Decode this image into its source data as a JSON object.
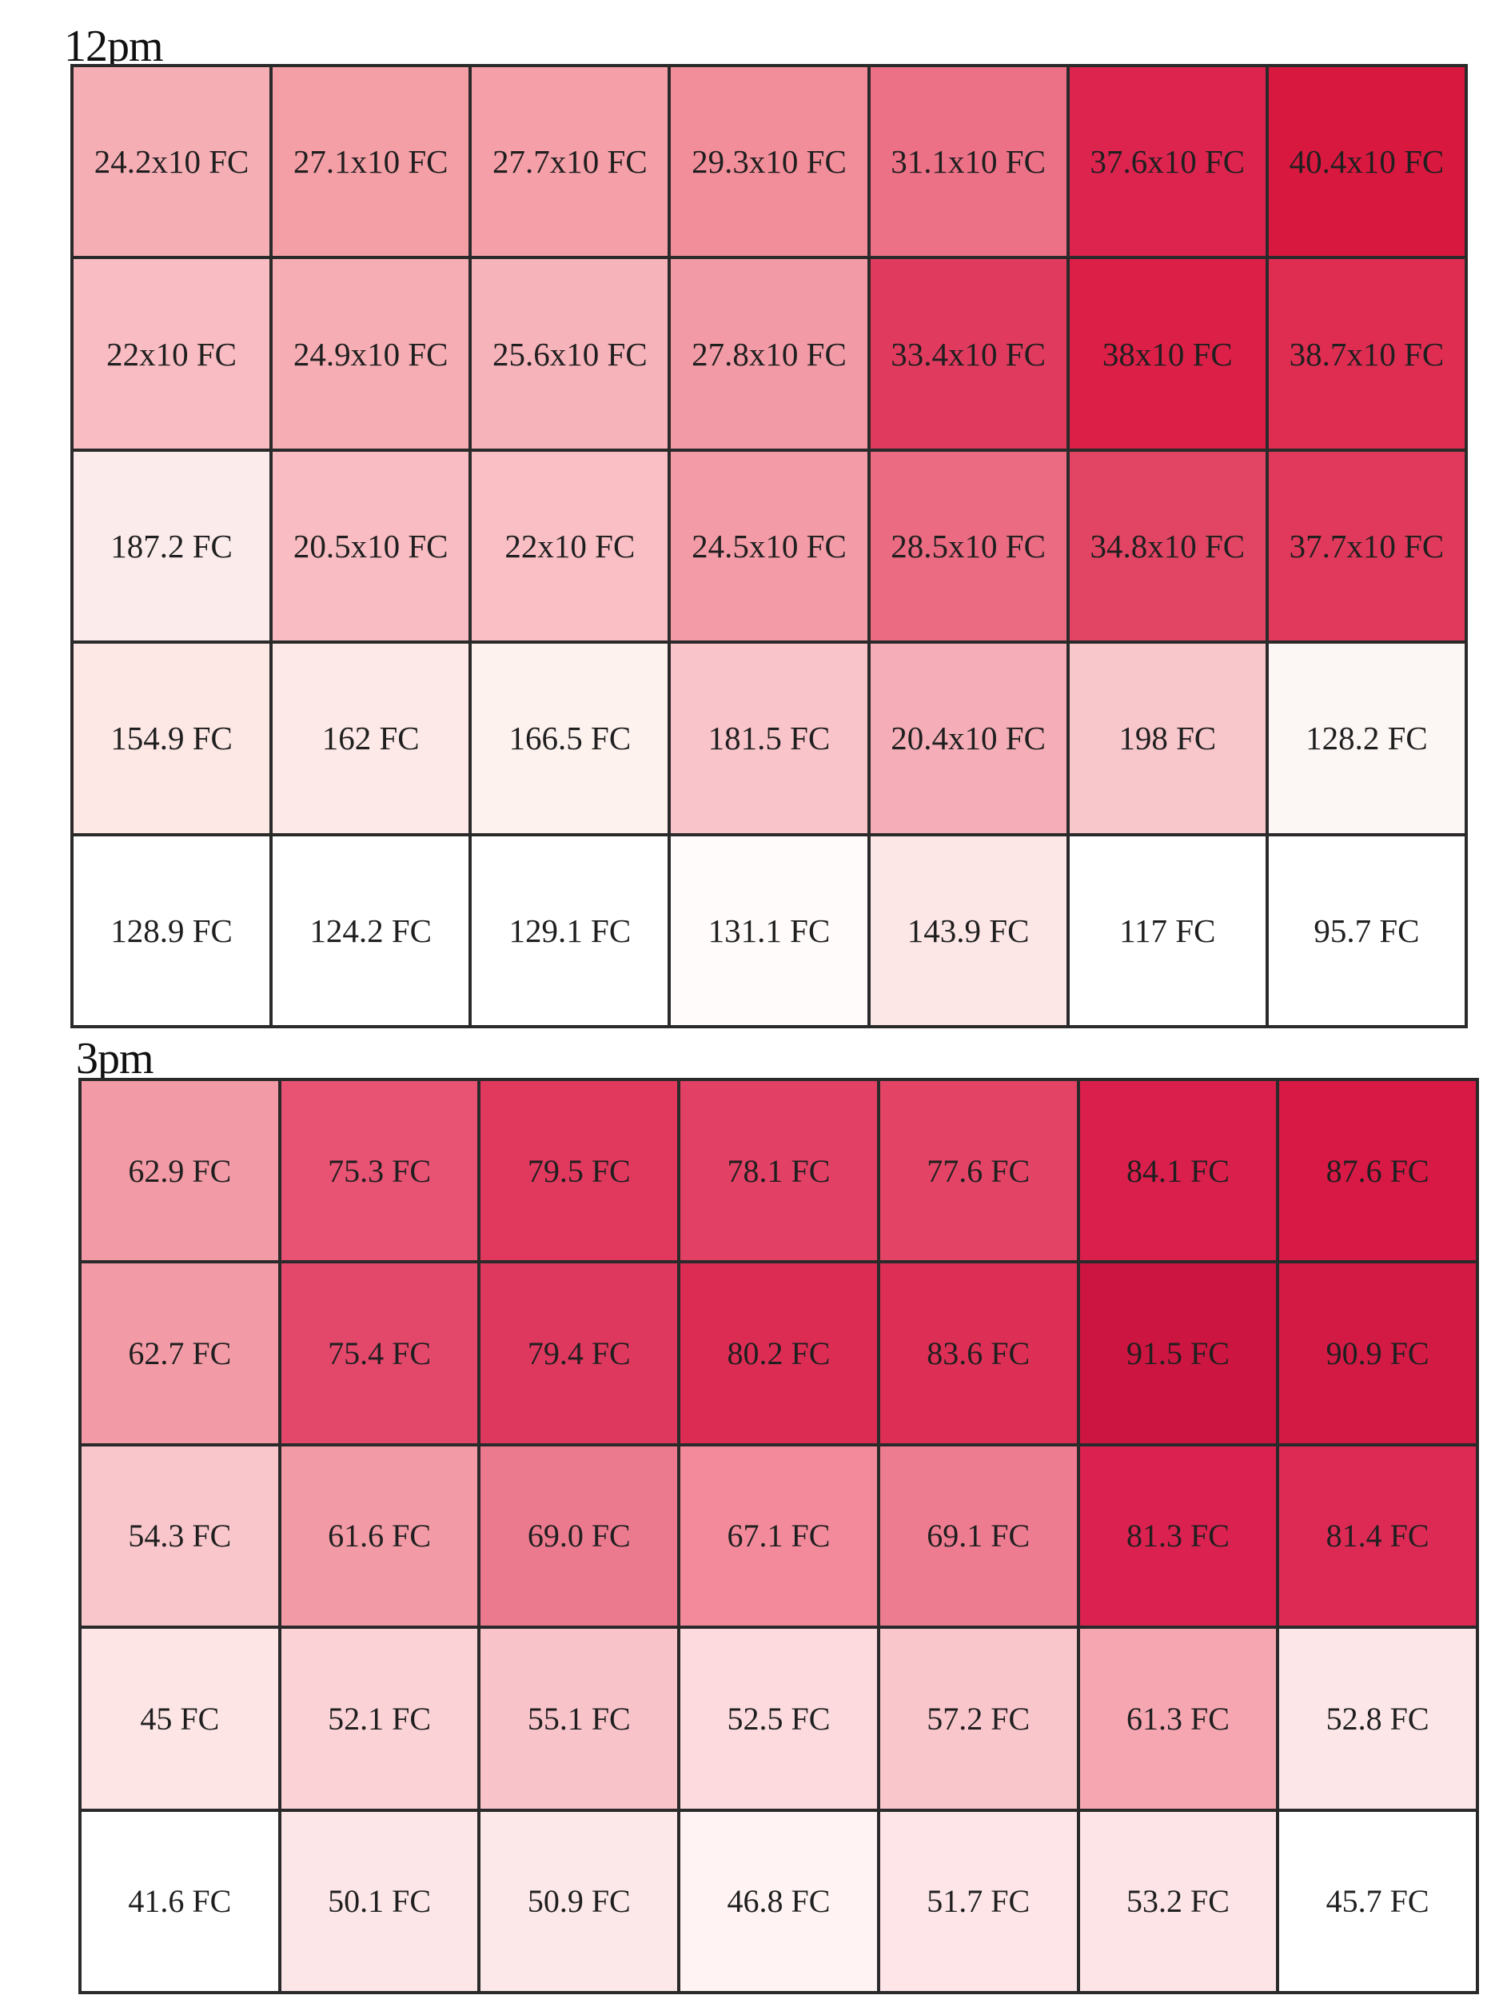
{
  "chart_data": [
    {
      "type": "heatmap",
      "title": "12pm",
      "rows": 5,
      "cols": 7,
      "cells": [
        [
          "24.2x10 FC",
          "27.1x10 FC",
          "27.7x10 FC",
          "29.3x10 FC",
          "31.1x10 FC",
          "37.6x10 FC",
          "40.4x10 FC"
        ],
        [
          "22x10 FC",
          "24.9x10 FC",
          "25.6x10 FC",
          "27.8x10 FC",
          "33.4x10 FC",
          "38x10 FC",
          "38.7x10 FC"
        ],
        [
          "187.2 FC",
          "20.5x10 FC",
          "22x10 FC",
          "24.5x10 FC",
          "28.5x10 FC",
          "34.8x10 FC",
          "37.7x10 FC"
        ],
        [
          "154.9 FC",
          "162 FC",
          "166.5 FC",
          "181.5 FC",
          "20.4x10 FC",
          "198 FC",
          "128.2 FC"
        ],
        [
          "128.9 FC",
          "124.2 FC",
          "129.1 FC",
          "131.1 FC",
          "143.9 FC",
          "117 FC",
          "95.7 FC"
        ]
      ],
      "values": [
        [
          242,
          271,
          277,
          293,
          311,
          376,
          404
        ],
        [
          220,
          249,
          256,
          278,
          334,
          380,
          387
        ],
        [
          187.2,
          205,
          220,
          245,
          285,
          348,
          377
        ],
        [
          154.9,
          162,
          166.5,
          181.5,
          204,
          198,
          128.2
        ],
        [
          128.9,
          124.2,
          129.1,
          131.1,
          143.9,
          117,
          95.7
        ]
      ],
      "colors": [
        [
          "#f6aeb5",
          "#f49ea6",
          "#f59fa8",
          "#f28e9a",
          "#ec7187",
          "#dd244f",
          "#d8183f"
        ],
        [
          "#f8bcc2",
          "#f6adb4",
          "#f7b3ba",
          "#f29ba6",
          "#e03b5e",
          "#dc1f47",
          "#df2d52"
        ],
        [
          "#fcebeb",
          "#f8bcc2",
          "#f9bfc5",
          "#f39ca7",
          "#ea6b82",
          "#e24564",
          "#e1395b"
        ],
        [
          "#fde8e6",
          "#fde9e7",
          "#fef2ef",
          "#f9c5cb",
          "#f5aeb7",
          "#f8c7cc",
          "#fcf6f4"
        ],
        [
          "#ffffff",
          "#ffffff",
          "#ffffff",
          "#fefbfa",
          "#fce6e6",
          "#ffffff",
          "#ffffff"
        ]
      ]
    },
    {
      "type": "heatmap",
      "title": "3pm",
      "rows": 5,
      "cols": 7,
      "cells": [
        [
          "62.9 FC",
          "75.3 FC",
          "79.5 FC",
          "78.1 FC",
          "77.6 FC",
          "84.1 FC",
          "87.6 FC"
        ],
        [
          "62.7 FC",
          "75.4 FC",
          "79.4 FC",
          "80.2 FC",
          "83.6 FC",
          "91.5 FC",
          "90.9 FC"
        ],
        [
          "54.3 FC",
          "61.6 FC",
          "69.0 FC",
          "67.1 FC",
          "69.1 FC",
          "81.3 FC",
          "81.4 FC"
        ],
        [
          "45 FC",
          "52.1 FC",
          "55.1 FC",
          "52.5 FC",
          "57.2 FC",
          "61.3 FC",
          "52.8 FC"
        ],
        [
          "41.6 FC",
          "50.1 FC",
          "50.9 FC",
          "46.8 FC",
          "51.7 FC",
          "53.2 FC",
          "45.7 FC"
        ]
      ],
      "values": [
        [
          62.9,
          75.3,
          79.5,
          78.1,
          77.6,
          84.1,
          87.6
        ],
        [
          62.7,
          75.4,
          79.4,
          80.2,
          83.6,
          91.5,
          90.9
        ],
        [
          54.3,
          61.6,
          69.0,
          67.1,
          69.1,
          81.3,
          81.4
        ],
        [
          45,
          52.1,
          55.1,
          52.5,
          57.2,
          61.3,
          52.8
        ],
        [
          41.6,
          50.1,
          50.9,
          46.8,
          51.7,
          53.2,
          45.7
        ]
      ],
      "colors": [
        [
          "#f29aa5",
          "#e85273",
          "#e1395e",
          "#e24064",
          "#e34466",
          "#db1f4c",
          "#d81845"
        ],
        [
          "#f29aa5",
          "#e3486b",
          "#df385e",
          "#dc2c54",
          "#dd2f55",
          "#cc1540",
          "#d21a45"
        ],
        [
          "#f9c6cc",
          "#f29aa5",
          "#ec7a8f",
          "#f28a9b",
          "#ee7c91",
          "#da2150",
          "#dc2a55"
        ],
        [
          "#fde5e6",
          "#fbd3d6",
          "#f9c3ca",
          "#fcdade",
          "#f9c6cc",
          "#f5a6b1",
          "#fce6e8"
        ],
        [
          "#ffffff",
          "#fce6e8",
          "#fde8e9",
          "#fff3f3",
          "#fde5e8",
          "#fce4e7",
          "#ffffff"
        ]
      ]
    }
  ]
}
